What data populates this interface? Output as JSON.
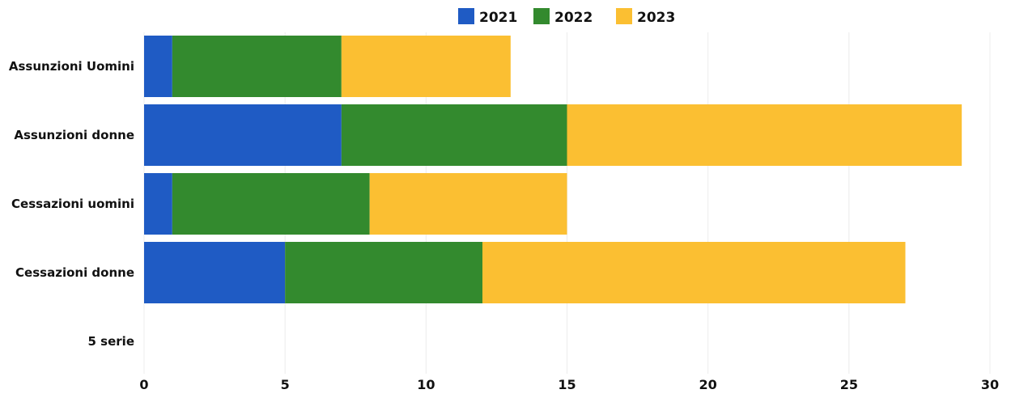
{
  "chart_data": {
    "type": "bar",
    "orientation": "horizontal",
    "stacked": true,
    "title": "",
    "xlabel": "",
    "ylabel": "",
    "categories": [
      "Assunzioni Uomini",
      "Assunzioni donne",
      "Cessazioni uomini",
      "Cessazioni donne",
      "5 serie"
    ],
    "series": [
      {
        "name": "2021",
        "color": "#1f5bc4",
        "values": [
          1,
          7,
          1,
          5,
          0
        ]
      },
      {
        "name": "2022",
        "color": "#338a2e",
        "values": [
          6,
          8,
          7,
          7,
          0
        ]
      },
      {
        "name": "2023",
        "color": "#fbbf32",
        "values": [
          6,
          14,
          7,
          15,
          0
        ]
      }
    ],
    "xlim": [
      0,
      30
    ],
    "xticks": [
      0,
      5,
      10,
      15,
      20,
      25,
      30
    ],
    "grid": true,
    "legend": "top-center"
  }
}
